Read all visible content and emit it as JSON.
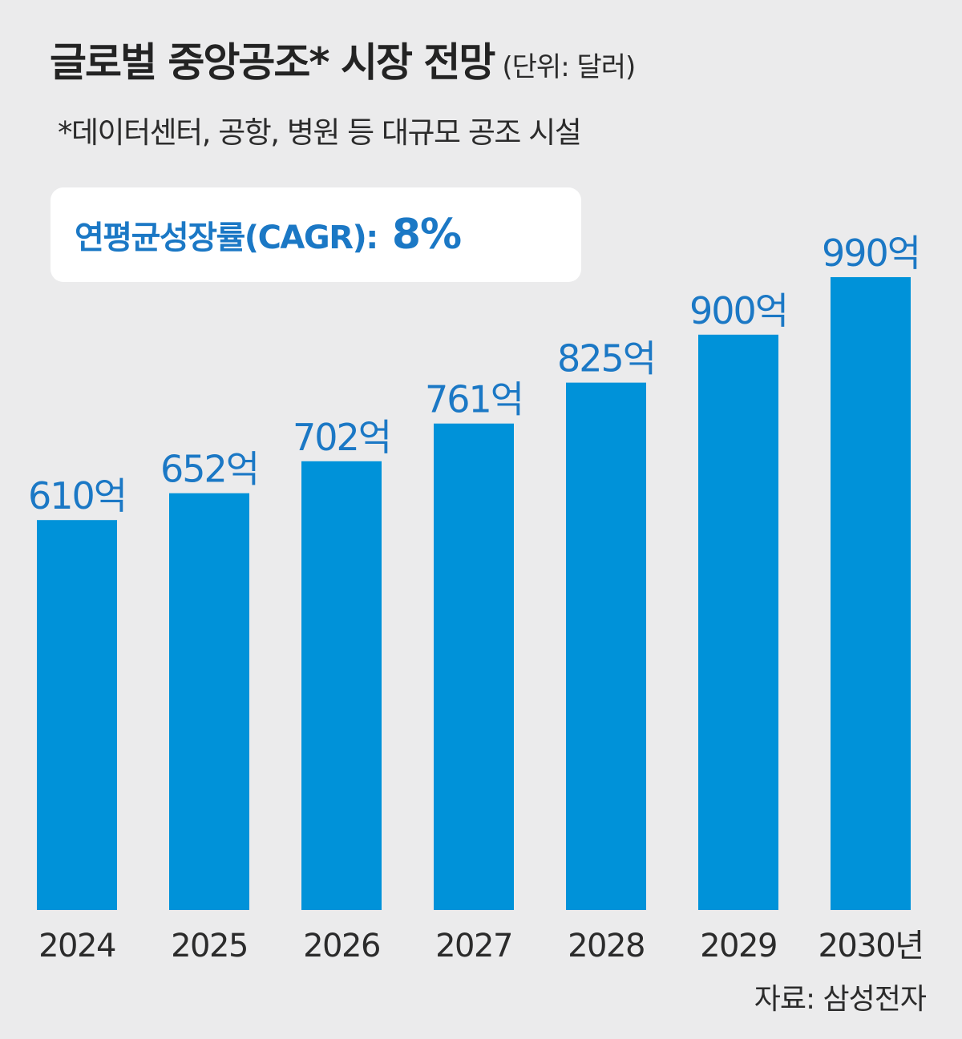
{
  "header": {
    "title": "글로벌 중앙공조* 시장 전망",
    "unit": "(단위: 달러)",
    "footnote": "*데이터센터, 공항, 병원 등 대규모 공조 시설"
  },
  "cagr": {
    "label": "연평균성장률(CAGR):",
    "value": "8%"
  },
  "source": "자료: 삼성전자",
  "colors": {
    "bar": "#0092d9",
    "value_label": "#1b78c5",
    "background": "#ebebec",
    "text": "#2b2b2b"
  },
  "chart_data": {
    "type": "bar",
    "categories": [
      "2024",
      "2025",
      "2026",
      "2027",
      "2028",
      "2029",
      "2030년"
    ],
    "values": [
      610,
      652,
      702,
      761,
      825,
      900,
      990
    ],
    "value_labels": [
      "610억",
      "652억",
      "702억",
      "761억",
      "825억",
      "900억",
      "990억"
    ],
    "value_unit": "억",
    "ylim": [
      0,
      1010
    ],
    "grid": false,
    "legend": "none"
  }
}
